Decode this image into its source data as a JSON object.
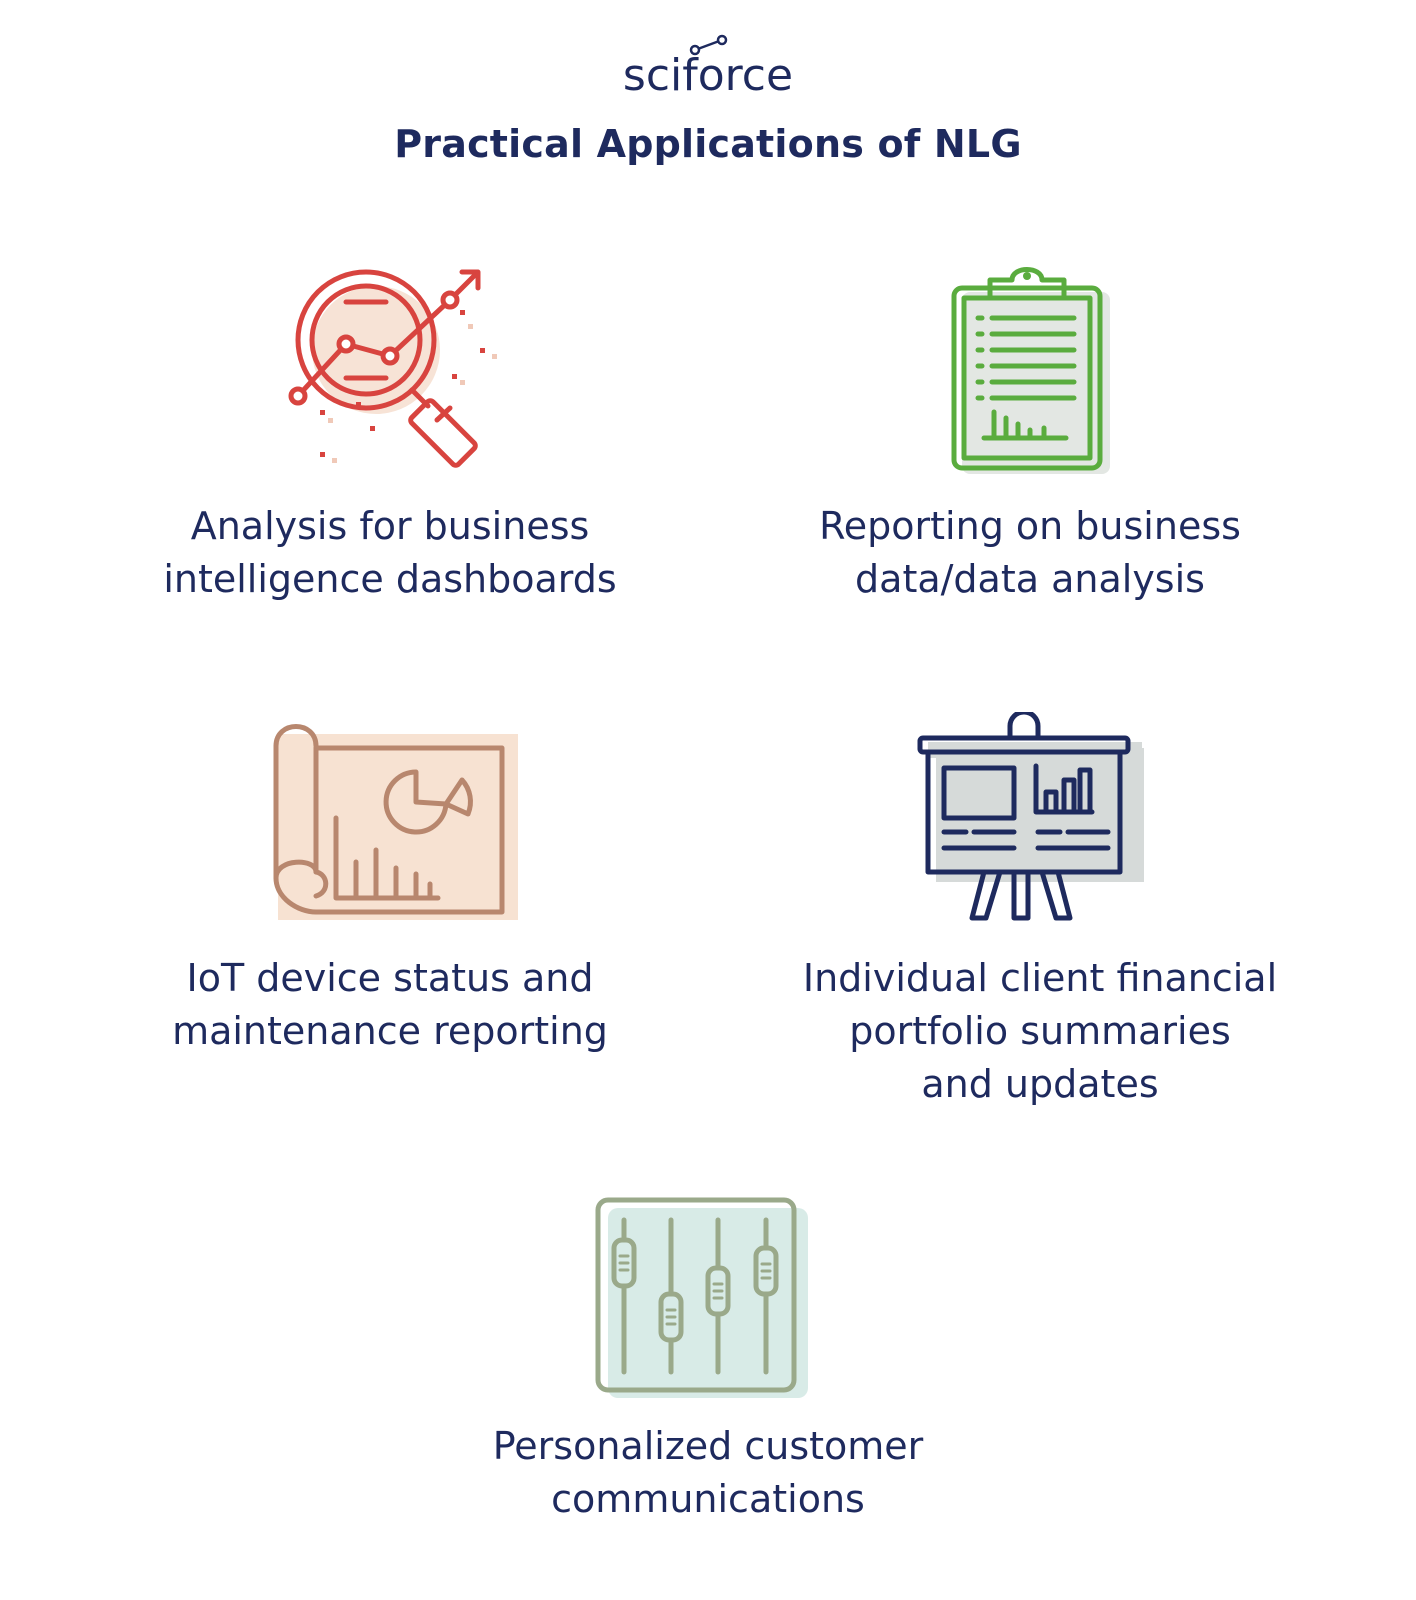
{
  "brand": {
    "logo_text": "sciforce"
  },
  "header": {
    "title": "Practical Applications of NLG"
  },
  "items": [
    {
      "icon": "magnifier-chart-icon",
      "color": "#d8443f",
      "lines": [
        "Analysis for business",
        "intelligence dashboards"
      ]
    },
    {
      "icon": "clipboard-report-icon",
      "color": "#5aac3e",
      "lines": [
        "Reporting on business",
        "data/data analysis"
      ]
    },
    {
      "icon": "blueprint-chart-icon",
      "color": "#b8876e",
      "lines": [
        "IoT device status and",
        "maintenance reporting"
      ]
    },
    {
      "icon": "presentation-board-icon",
      "color": "#1e2a5e",
      "lines": [
        "Individual client financial",
        "portfolio summaries",
        "and updates"
      ]
    },
    {
      "icon": "sliders-icon",
      "color": "#9aa98a",
      "lines": [
        "Personalized customer",
        "communications"
      ]
    }
  ]
}
